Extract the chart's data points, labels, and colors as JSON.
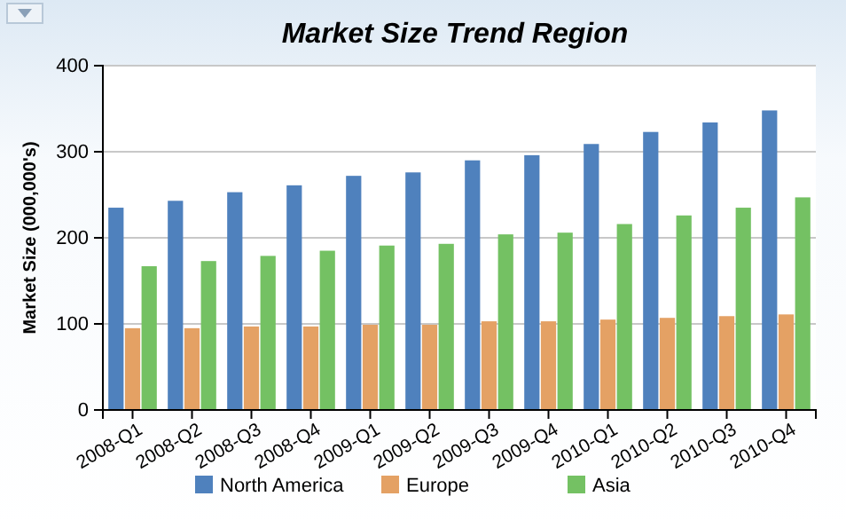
{
  "chart_data": {
    "type": "bar",
    "title": "Market Size Trend Region",
    "ylabel": "Market Size (000,000's)",
    "categories": [
      "2008-Q1",
      "2008-Q2",
      "2008-Q3",
      "2008-Q4",
      "2009-Q1",
      "2009-Q2",
      "2009-Q3",
      "2009-Q4",
      "2010-Q1",
      "2010-Q2",
      "2010-Q3",
      "2010-Q4"
    ],
    "series": [
      {
        "name": "North America",
        "color": "#4f81bd",
        "values": [
          235,
          243,
          253,
          261,
          272,
          276,
          290,
          296,
          309,
          323,
          334,
          348
        ]
      },
      {
        "name": "Europe",
        "color": "#e4a164",
        "values": [
          95,
          95,
          97,
          97,
          99,
          99,
          103,
          103,
          105,
          107,
          109,
          111
        ]
      },
      {
        "name": "Asia",
        "color": "#74c163",
        "values": [
          167,
          173,
          179,
          185,
          191,
          193,
          204,
          206,
          216,
          226,
          235,
          247
        ]
      }
    ],
    "ylim": [
      0,
      400
    ],
    "yticks": [
      0,
      100,
      200,
      300,
      400
    ],
    "grid": "y",
    "legend": "bottom"
  }
}
